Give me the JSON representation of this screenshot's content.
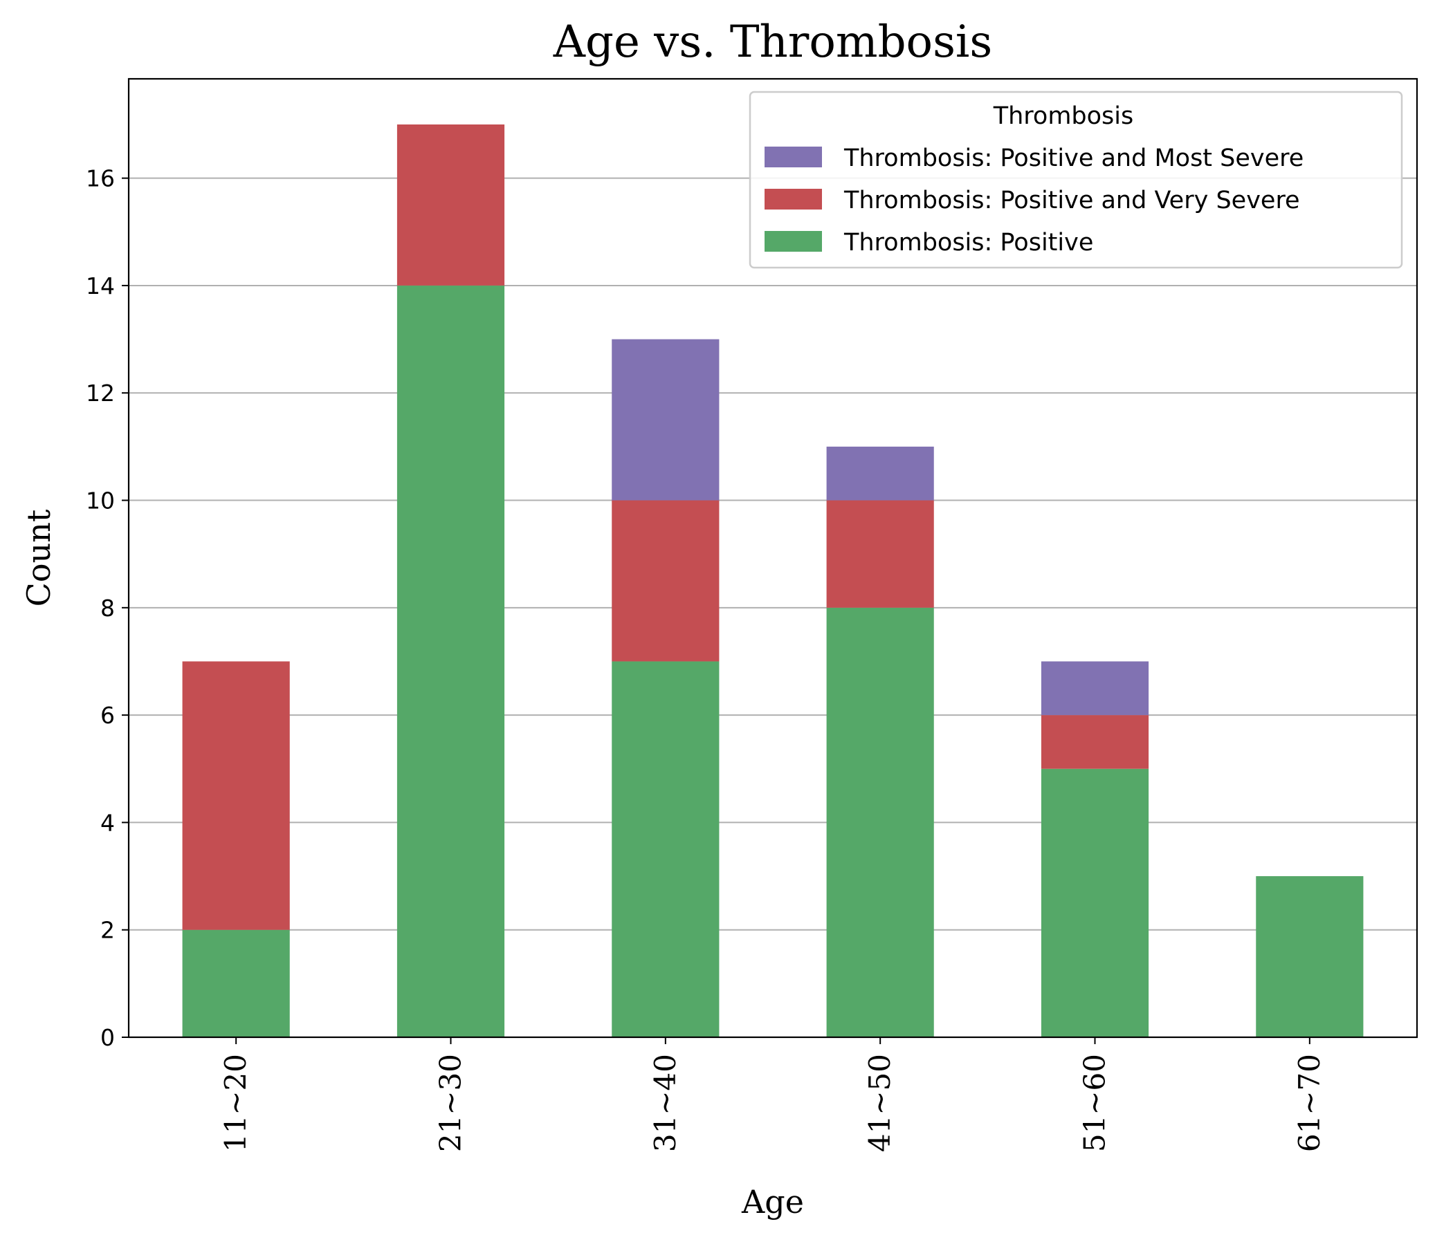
{
  "chart_data": {
    "type": "bar",
    "stacked": true,
    "title": "Age vs. Thrombosis",
    "xlabel": "Age",
    "ylabel": "Count",
    "categories": [
      "11~20",
      "21~30",
      "31~40",
      "41~50",
      "51~60",
      "61~70"
    ],
    "ylim": [
      0,
      17.85
    ],
    "yticks": [
      0,
      2,
      4,
      6,
      8,
      10,
      12,
      14,
      16
    ],
    "grid": "y",
    "legend": {
      "title": "Thrombosis",
      "placement": "top-right",
      "order": [
        2,
        1,
        0
      ]
    },
    "series": [
      {
        "name": "Thrombosis: Positive",
        "color": "#55a868",
        "values": [
          2,
          14,
          7,
          8,
          5,
          3
        ]
      },
      {
        "name": "Thrombosis: Positive and Very Severe",
        "color": "#c44e52",
        "values": [
          5,
          3,
          3,
          2,
          1,
          0
        ]
      },
      {
        "name": "Thrombosis: Positive and Most Severe",
        "color": "#8172b2",
        "values": [
          0,
          0,
          3,
          1,
          1,
          0
        ]
      }
    ]
  }
}
